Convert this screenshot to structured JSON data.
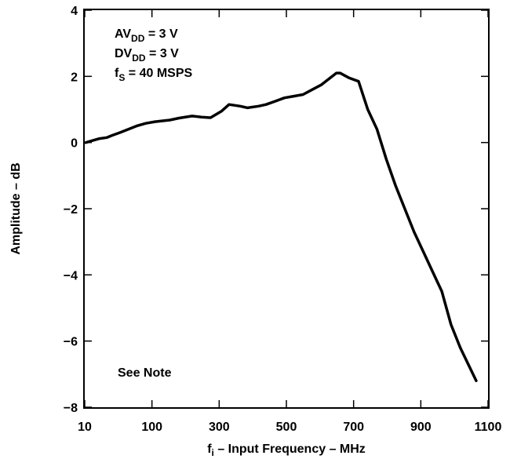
{
  "chart_data": {
    "type": "line",
    "title": "",
    "xlabel": {
      "main": "f",
      "sub": "i",
      "rest": " – Input Frequency – MHz"
    },
    "ylabel": "Amplitude – dB",
    "xlim": [
      10,
      1100
    ],
    "ylim": [
      -8,
      4
    ],
    "x_ticks": [
      "10",
      "100",
      "300",
      "500",
      "700",
      "900",
      "1100"
    ],
    "y_ticks": [
      "4",
      "2",
      "0",
      "−2",
      "−4",
      "−6",
      "−8"
    ],
    "grid": false,
    "annotations": {
      "line1": {
        "main": "AV",
        "sub": "DD",
        "rest": " = 3 V"
      },
      "line2": {
        "main": "DV",
        "sub": "DD",
        "rest": " = 3 V"
      },
      "line3": {
        "main": "f",
        "sub": "S",
        "rest": " = 40  MSPS"
      },
      "note": "See Note"
    },
    "series": [
      {
        "x": [
          13,
          28,
          50,
          70,
          85,
          105,
          128,
          150,
          175,
          200,
          240,
          265,
          300,
          325,
          350,
          380,
          400,
          430,
          450,
          480,
          500,
          525,
          550,
          575,
          600,
          625,
          650,
          690,
          700,
          725,
          750,
          775,
          800,
          825,
          850,
          875,
          900,
          925,
          950,
          975,
          1000,
          1025,
          1068
        ],
        "y": [
          0.0,
          0.05,
          0.12,
          0.15,
          0.22,
          0.3,
          0.4,
          0.5,
          0.58,
          0.63,
          0.68,
          0.74,
          0.8,
          0.77,
          0.75,
          0.95,
          1.15,
          1.1,
          1.05,
          1.1,
          1.15,
          1.25,
          1.35,
          1.4,
          1.45,
          1.6,
          1.75,
          2.1,
          2.1,
          1.95,
          1.85,
          1.0,
          0.4,
          -0.5,
          -1.3,
          -2.0,
          -2.7,
          -3.3,
          -3.9,
          -4.5,
          -5.5,
          -6.2,
          -7.2
        ]
      }
    ]
  }
}
